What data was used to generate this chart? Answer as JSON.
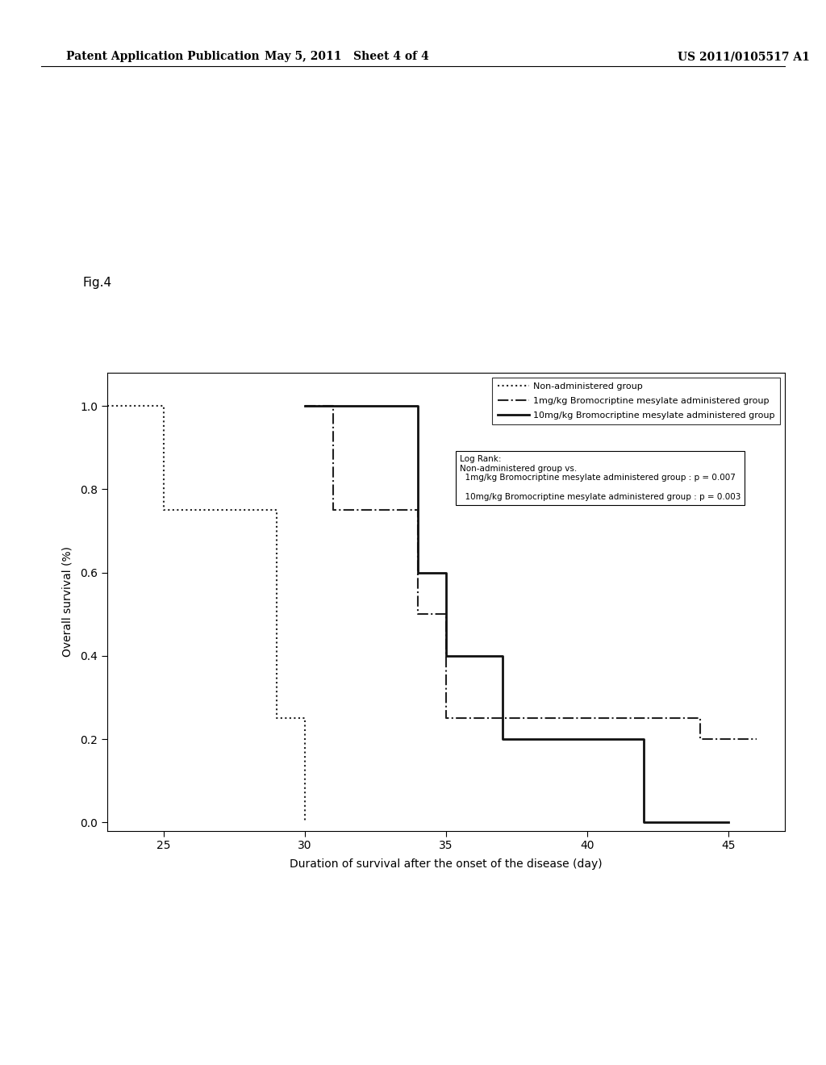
{
  "patent_header_left": "Patent Application Publication",
  "patent_header_mid": "May 5, 2011   Sheet 4 of 4",
  "patent_header_right": "US 2011/0105517 A1",
  "xlabel": "Duration of survival after the onset of the disease (day)",
  "ylabel": "Overall survival (%)",
  "xlim": [
    23,
    47
  ],
  "ylim": [
    -0.02,
    1.08
  ],
  "xticks": [
    25,
    30,
    35,
    40,
    45
  ],
  "yticks": [
    0.0,
    0.2,
    0.4,
    0.6,
    0.8,
    1.0
  ],
  "fig_label": "Fig.4",
  "curve_dotted": {
    "x": [
      23,
      25,
      25,
      29,
      29,
      30,
      30
    ],
    "y": [
      1.0,
      1.0,
      0.75,
      0.75,
      0.25,
      0.25,
      0.0
    ],
    "label": "Non-administered group",
    "linestyle": "dotted",
    "color": "#222222",
    "linewidth": 1.5
  },
  "curve_dashdot": {
    "x": [
      30,
      31,
      31,
      34,
      34,
      35,
      35,
      40,
      40,
      44,
      44,
      46
    ],
    "y": [
      1.0,
      1.0,
      0.75,
      0.75,
      0.5,
      0.5,
      0.25,
      0.25,
      0.25,
      0.25,
      0.2,
      0.2
    ],
    "label": "1mg/kg Bromocriptine mesylate administered group",
    "linestyle": "dashdot",
    "color": "#222222",
    "linewidth": 1.5
  },
  "curve_solid": {
    "x": [
      30,
      34,
      34,
      35,
      35,
      37,
      37,
      42,
      42,
      45,
      45
    ],
    "y": [
      1.0,
      1.0,
      0.6,
      0.6,
      0.4,
      0.4,
      0.2,
      0.2,
      0.0,
      0.0,
      0.0
    ],
    "label": "10mg/kg Bromocriptine mesylate administered group",
    "linestyle": "solid",
    "color": "#111111",
    "linewidth": 2.0
  },
  "legend_labels": [
    "Non-administered group",
    "1mg/kg Bromocriptine mesylate administered group",
    "10mg/kg Bromocriptine mesylate administered group"
  ],
  "logrank_text": "Log Rank:\nNon-administered group vs.\n  1mg/kg Bromocriptine mesylate administered group : p = 0.007\n\n  10mg/kg Bromocriptine mesylate administered group : p = 0.003",
  "background_color": "#ffffff"
}
